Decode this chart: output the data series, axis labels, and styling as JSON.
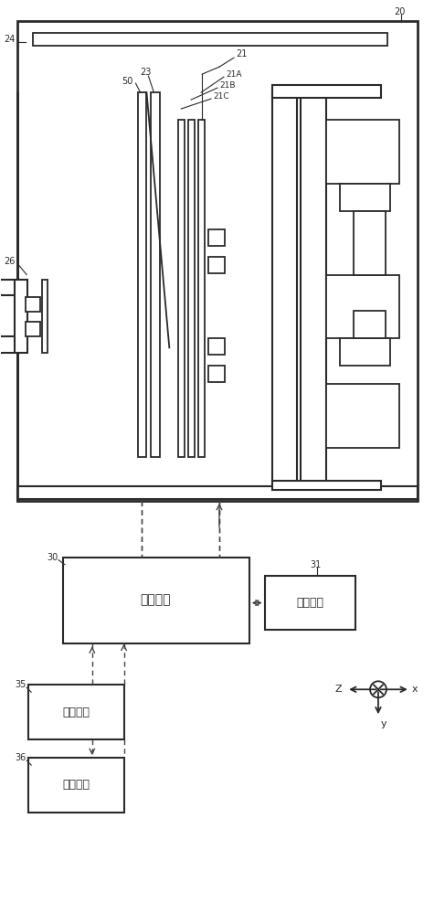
{
  "line_color": "#2a2a2a",
  "label_20": "20",
  "label_24": "24",
  "label_26": "26",
  "label_50": "50",
  "label_23": "23",
  "label_21": "21",
  "label_21A": "21A",
  "label_21B": "21B",
  "label_21C": "21C",
  "label_30": "30",
  "label_31": "31",
  "label_35": "35",
  "label_36": "36",
  "box_30_text_line1": "控制装置",
  "box_31_text": "存储装置",
  "box_35_text": "输入装置",
  "box_36_text": "输出装置",
  "axis_x": "x",
  "axis_y": "y",
  "axis_z": "Z"
}
